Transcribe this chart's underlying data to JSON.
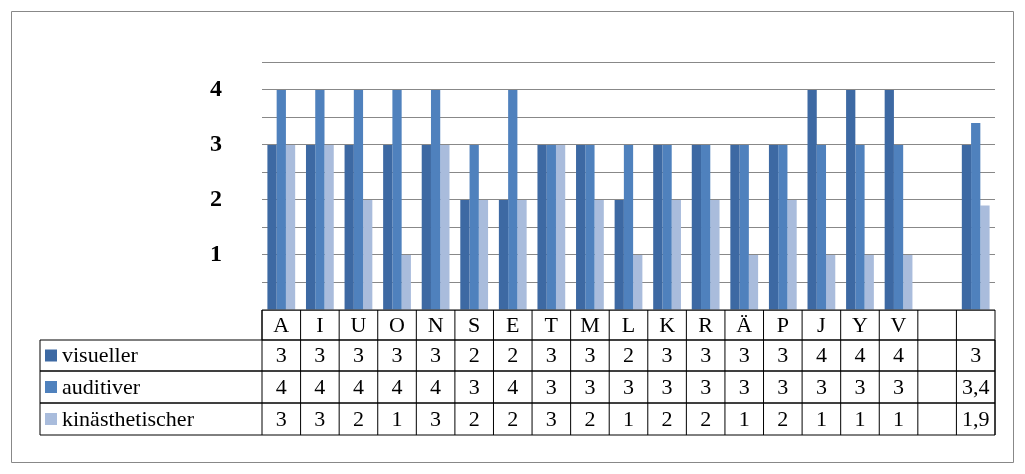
{
  "chart_data": {
    "type": "bar",
    "categories": [
      "A",
      "I",
      "U",
      "O",
      "N",
      "S",
      "E",
      "T",
      "M",
      "L",
      "K",
      "R",
      "Ä",
      "P",
      "J",
      "Y",
      "V",
      null,
      null
    ],
    "series": [
      {
        "name": "visueller",
        "color": "#3d69a3",
        "values": [
          3,
          3,
          3,
          3,
          3,
          2,
          2,
          3,
          3,
          2,
          3,
          3,
          3,
          3,
          4,
          4,
          4,
          null,
          3
        ],
        "value_labels": [
          "3",
          "3",
          "3",
          "3",
          "3",
          "2",
          "2",
          "3",
          "3",
          "2",
          "3",
          "3",
          "3",
          "3",
          "4",
          "4",
          "4",
          null,
          "3"
        ]
      },
      {
        "name": "auditiver",
        "color": "#4f81bd",
        "values": [
          4,
          4,
          4,
          4,
          4,
          3,
          4,
          3,
          3,
          3,
          3,
          3,
          3,
          3,
          3,
          3,
          3,
          null,
          3.4
        ],
        "value_labels": [
          "4",
          "4",
          "4",
          "4",
          "4",
          "3",
          "4",
          "3",
          "3",
          "3",
          "3",
          "3",
          "3",
          "3",
          "3",
          "3",
          "3",
          null,
          "3,4"
        ]
      },
      {
        "name": "kinästhetischer",
        "color": "#a9bcdc",
        "values": [
          3,
          3,
          2,
          1,
          3,
          2,
          2,
          3,
          2,
          1,
          2,
          2,
          1,
          2,
          1,
          1,
          1,
          null,
          1.9
        ],
        "value_labels": [
          "3",
          "3",
          "2",
          "1",
          "3",
          "2",
          "2",
          "3",
          "2",
          "1",
          "2",
          "2",
          "1",
          "2",
          "1",
          "1",
          "1",
          null,
          "1,9"
        ]
      }
    ],
    "ylim": [
      0,
      4.5
    ],
    "yticks": [
      {
        "value": 0,
        "label": null
      },
      {
        "value": 0.5,
        "label": null
      },
      1,
      {
        "value": 1.5,
        "label": null
      },
      2,
      {
        "value": 2.5,
        "label": null
      },
      3,
      {
        "value": 3.5,
        "label": null
      },
      4,
      {
        "value": 4.5,
        "label": null
      }
    ],
    "grid": "y",
    "legend": "bottom left"
  }
}
